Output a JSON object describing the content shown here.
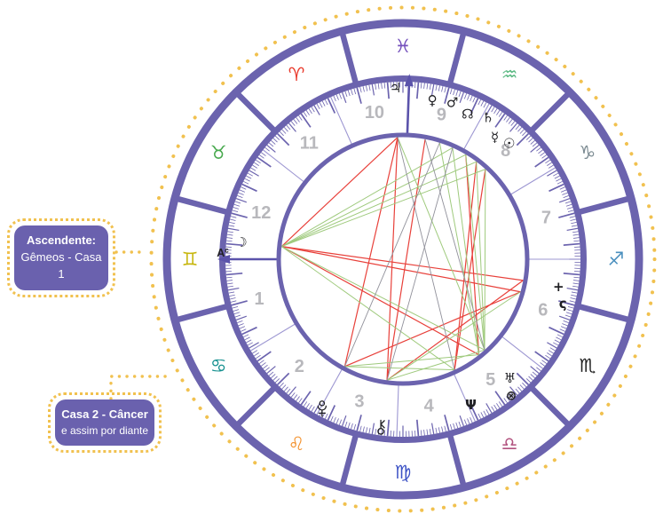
{
  "callouts": {
    "ascendant": {
      "title": "Ascendente:",
      "subtitle": "Gêmeos - Casa 1"
    },
    "house2": {
      "title": "Casa 2 - Câncer",
      "subtitle": "e assim por diante"
    }
  },
  "wheel": {
    "ac_marker": {
      "letter": "A",
      "sup": "c"
    },
    "house_numbers": [
      {
        "label": "1",
        "angle": 195.5
      },
      {
        "label": "2",
        "angle": 226
      },
      {
        "label": "3",
        "angle": 253
      },
      {
        "label": "4",
        "angle": 280
      },
      {
        "label": "5",
        "angle": 306
      },
      {
        "label": "6",
        "angle": 340
      },
      {
        "label": "7",
        "angle": 16
      },
      {
        "label": "8",
        "angle": 46.5
      },
      {
        "label": "9",
        "angle": 75
      },
      {
        "label": "10",
        "angle": 101
      },
      {
        "label": "11",
        "angle": 129
      },
      {
        "label": "12",
        "angle": 162
      }
    ],
    "house_cusps": {
      "angles": [
        180,
        211,
        241,
        268,
        294,
        322,
        0,
        31,
        61,
        88,
        114,
        142
      ],
      "ascendant_index": 0,
      "midheaven_index": 9
    },
    "signs": [
      {
        "name": "aries",
        "symbol": "♈",
        "angle": 120,
        "color": "#e93a2c"
      },
      {
        "name": "taurus",
        "symbol": "♉",
        "angle": 150,
        "color": "#48a94e"
      },
      {
        "name": "gemini",
        "symbol": "♊",
        "angle": 180,
        "color": "#c6b50a"
      },
      {
        "name": "cancer",
        "symbol": "♋",
        "angle": 210,
        "color": "#169190"
      },
      {
        "name": "leo",
        "symbol": "♌",
        "angle": 240,
        "color": "#f3912c"
      },
      {
        "name": "virgo",
        "symbol": "♍",
        "angle": 270,
        "color": "#3d53c5"
      },
      {
        "name": "libra",
        "symbol": "♎",
        "angle": 300,
        "color": "#b2537f"
      },
      {
        "name": "scorpio",
        "symbol": "♏",
        "angle": 330,
        "color": "#202020"
      },
      {
        "name": "sagittarius",
        "symbol": "♐",
        "angle": 0,
        "color": "#4a8fbe"
      },
      {
        "name": "capricorn",
        "symbol": "♑",
        "angle": 30,
        "color": "#7c8b92"
      },
      {
        "name": "aquarius",
        "symbol": "♒",
        "angle": 60,
        "color": "#5dba84"
      },
      {
        "name": "pisces",
        "symbol": "♓",
        "angle": 90,
        "color": "#7450bc"
      }
    ],
    "planets": [
      {
        "name": "moon",
        "symbol": "☽",
        "angle": 174,
        "radius": 183
      },
      {
        "name": "jupiter",
        "symbol": "♃",
        "angle": 92.5,
        "radius": 193
      },
      {
        "name": "venus",
        "symbol": "♀",
        "angle": 79.5,
        "radius": 182
      },
      {
        "name": "mars",
        "symbol": "♂",
        "angle": 72.5,
        "radius": 185
      },
      {
        "name": "north-node",
        "symbol": "☊",
        "angle": 66,
        "radius": 179
      },
      {
        "name": "saturn",
        "symbol": "♄",
        "angle": 59,
        "radius": 186
      },
      {
        "name": "mercury",
        "symbol": "☿",
        "angle": 53,
        "radius": 172
      },
      {
        "name": "sun",
        "symbol": "☉",
        "angle": 47.5,
        "radius": 177
      },
      {
        "name": "juno",
        "symbol": "+",
        "angle": 350,
        "radius": 178
      },
      {
        "name": "ceres",
        "symbol": "ς",
        "angle": 344.5,
        "radius": 187
      },
      {
        "name": "uranus",
        "symbol": "♅",
        "angle": 312,
        "radius": 180
      },
      {
        "name": "fortune",
        "symbol": "⊗",
        "angle": 308.5,
        "radius": 196
      },
      {
        "name": "neptune",
        "symbol": "Ψ",
        "angle": 295,
        "radius": 181
      },
      {
        "name": "chiron",
        "symbol": "⚷",
        "draw": "chiron",
        "angle": 262.5,
        "radius": 191
      },
      {
        "name": "pluto",
        "symbol": "♇",
        "draw": "pluto",
        "angle": 241.5,
        "radius": 191
      }
    ],
    "aspects": [
      {
        "a": "moon",
        "b": "jupiter",
        "type": "red"
      },
      {
        "a": "moon",
        "b": "juno",
        "type": "red"
      },
      {
        "a": "moon",
        "b": "ceres",
        "type": "red"
      },
      {
        "a": "moon",
        "b": "fortune",
        "type": "red"
      },
      {
        "a": "jupiter",
        "b": "chiron",
        "type": "red"
      },
      {
        "a": "jupiter",
        "b": "pluto",
        "type": "red"
      },
      {
        "a": "mercury",
        "b": "neptune",
        "type": "red"
      },
      {
        "a": "sun",
        "b": "neptune",
        "type": "red"
      },
      {
        "a": "saturn",
        "b": "fortune",
        "type": "red"
      },
      {
        "a": "juno",
        "b": "chiron",
        "type": "red"
      },
      {
        "a": "ceres",
        "b": "pluto",
        "type": "red"
      },
      {
        "a": "venus",
        "b": "chiron",
        "type": "red"
      },
      {
        "a": "moon",
        "b": "north-node",
        "type": "green"
      },
      {
        "a": "moon",
        "b": "saturn",
        "type": "green"
      },
      {
        "a": "moon",
        "b": "mercury",
        "type": "green"
      },
      {
        "a": "moon",
        "b": "sun",
        "type": "green"
      },
      {
        "a": "moon",
        "b": "neptune",
        "type": "green"
      },
      {
        "a": "moon",
        "b": "uranus",
        "type": "green"
      },
      {
        "a": "sun",
        "b": "uranus",
        "type": "green"
      },
      {
        "a": "mercury",
        "b": "uranus",
        "type": "green"
      },
      {
        "a": "saturn",
        "b": "uranus",
        "type": "green"
      },
      {
        "a": "north-node",
        "b": "fortune",
        "type": "green"
      },
      {
        "a": "mars",
        "b": "fortune",
        "type": "green"
      },
      {
        "a": "jupiter",
        "b": "uranus",
        "type": "green"
      },
      {
        "a": "pluto",
        "b": "neptune",
        "type": "green"
      },
      {
        "a": "pluto",
        "b": "fortune",
        "type": "green"
      },
      {
        "a": "chiron",
        "b": "ceres",
        "type": "green"
      },
      {
        "a": "chiron",
        "b": "uranus",
        "type": "green"
      },
      {
        "a": "north-node",
        "b": "chiron",
        "type": "gray"
      },
      {
        "a": "mars",
        "b": "pluto",
        "type": "gray"
      },
      {
        "a": "jupiter",
        "b": "neptune",
        "type": "gray"
      },
      {
        "a": "venus",
        "b": "uranus",
        "type": "gray"
      }
    ]
  },
  "colors": {
    "ring": "#6b63ae",
    "dotted": "#f1c14f",
    "house_number": "#b8b8bc",
    "cusp_line": "#9d97d2",
    "arrow": "#5b53ab",
    "planet": "#1f1f23",
    "aspect_red": "#e8403a",
    "aspect_green": "#9fca7d",
    "aspect_gray": "#90909a",
    "callout_bg": "#6a61ae",
    "callout_text": "#ffffff"
  }
}
